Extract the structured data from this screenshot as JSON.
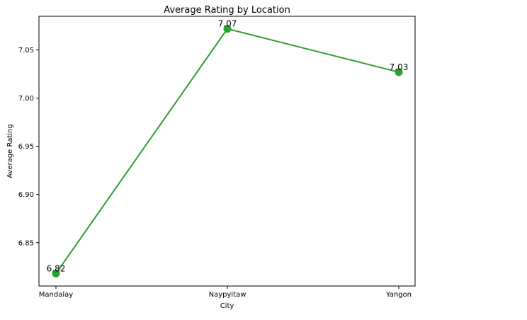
{
  "chart_data": {
    "type": "line",
    "title": "Average Rating by Location",
    "xlabel": "City",
    "ylabel": "Average Rating",
    "categories": [
      "Mandalay",
      "Naypyitaw",
      "Yangon"
    ],
    "series": [
      {
        "values": [
          6.818,
          7.072,
          7.027
        ],
        "labels": [
          "6.82",
          "7.07",
          "7.03"
        ],
        "color": "#2ca02c"
      }
    ],
    "ylim": [
      6.805,
      7.085
    ],
    "yticks": [
      6.85,
      6.9,
      6.95,
      7.0,
      7.05
    ],
    "ytick_labels": [
      "6.85",
      "6.90",
      "6.95",
      "7.00",
      "7.05"
    ],
    "grid": false,
    "legend": false
  }
}
